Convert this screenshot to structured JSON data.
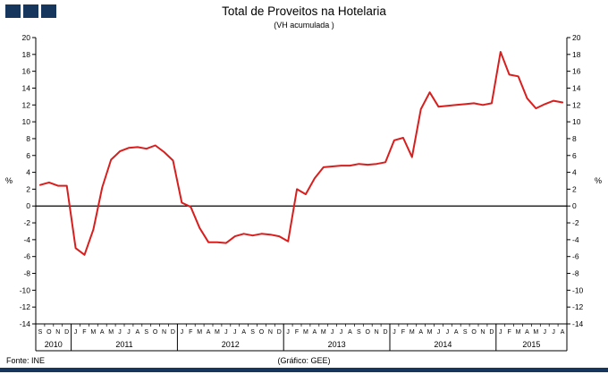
{
  "colors": {
    "line": "#d91e1e",
    "navy": "#17365d",
    "axis": "#000000"
  },
  "footer": {
    "source": "Fonte:  INE",
    "credit": "(Gráfico: GEE)"
  },
  "chart_data": {
    "type": "line",
    "title": "Total de Proveitos na Hotelaria",
    "subtitle": "(VH acumulada )",
    "ylabel_left": "%",
    "ylabel_right": "%",
    "ylim": [
      -14,
      20
    ],
    "ytick_step": 2,
    "grid": false,
    "legend": "none",
    "x_labels": [
      "S",
      "O",
      "N",
      "D",
      "J",
      "F",
      "M",
      "A",
      "M",
      "J",
      "J",
      "A",
      "S",
      "O",
      "N",
      "D",
      "J",
      "F",
      "M",
      "A",
      "M",
      "J",
      "J",
      "A",
      "S",
      "O",
      "N",
      "D",
      "J",
      "F",
      "M",
      "A",
      "M",
      "J",
      "J",
      "A",
      "S",
      "O",
      "N",
      "D",
      "J",
      "F",
      "M",
      "A",
      "M",
      "J",
      "J",
      "A",
      "S",
      "O",
      "N",
      "D",
      "J",
      "F",
      "M",
      "A",
      "M",
      "J",
      "J",
      "A"
    ],
    "year_groups": [
      {
        "year": "2010",
        "count": 4
      },
      {
        "year": "2011",
        "count": 12
      },
      {
        "year": "2012",
        "count": 12
      },
      {
        "year": "2013",
        "count": 12
      },
      {
        "year": "2014",
        "count": 12
      },
      {
        "year": "2015",
        "count": 8
      }
    ],
    "series": [
      {
        "name": "Total de Proveitos na Hotelaria (VH acumulada)",
        "color": "#d91e1e",
        "values": [
          2.5,
          2.8,
          2.4,
          2.4,
          -5.0,
          -5.8,
          -2.8,
          2.2,
          5.5,
          6.5,
          6.9,
          7.0,
          6.8,
          7.2,
          6.4,
          5.4,
          0.4,
          -0.1,
          -2.6,
          -4.3,
          -4.3,
          -4.4,
          -3.6,
          -3.3,
          -3.5,
          -3.3,
          -3.4,
          -3.6,
          -4.2,
          2.0,
          1.4,
          3.3,
          4.6,
          4.7,
          4.8,
          4.8,
          5.0,
          4.9,
          5.0,
          5.2,
          7.8,
          8.1,
          5.8,
          11.5,
          13.5,
          11.8,
          11.9,
          12.0,
          12.1,
          12.2,
          12.0,
          12.2,
          18.3,
          15.6,
          15.4,
          12.8,
          11.6,
          12.1,
          12.5,
          12.3
        ]
      }
    ]
  }
}
